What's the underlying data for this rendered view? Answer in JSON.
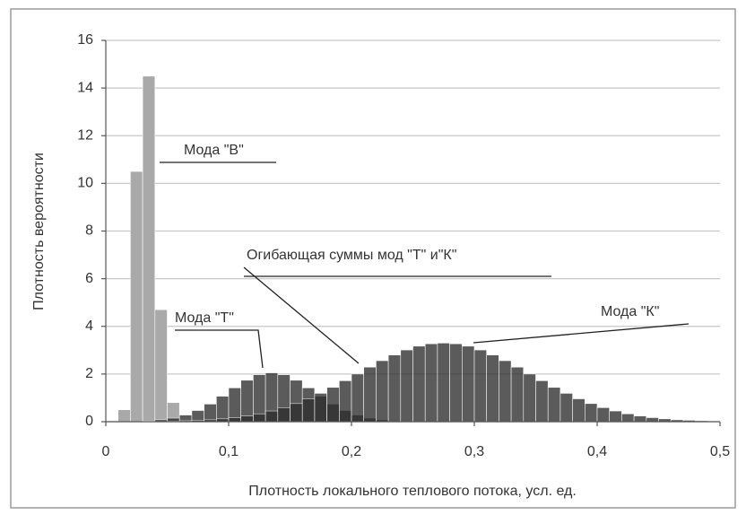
{
  "chart_data": {
    "type": "histogram",
    "x_label": "Плотность локального теплового потока, усл. ед.",
    "y_label": "Плотность вероятности",
    "bins": [
      0,
      0.01,
      0.02,
      0.03,
      0.04,
      0.05,
      0.06,
      0.07,
      0.08,
      0.09,
      0.1,
      0.11,
      0.12,
      0.13,
      0.14,
      0.15,
      0.16,
      0.17,
      0.18,
      0.19,
      0.2,
      0.21,
      0.22,
      0.23,
      0.24,
      0.25,
      0.26,
      0.27,
      0.28,
      0.29,
      0.3,
      0.31,
      0.32,
      0.33,
      0.34,
      0.35,
      0.36,
      0.37,
      0.38,
      0.39,
      0.4,
      0.41,
      0.42,
      0.43,
      0.44,
      0.45,
      0.46,
      0.47,
      0.48,
      0.49,
      0.5
    ],
    "series": [
      {
        "color": "#a9a9a9",
        "values": [
          0,
          0.5,
          10.5,
          14.5,
          4.7,
          0.8,
          0,
          0,
          0,
          0,
          0,
          0,
          0,
          0,
          0,
          0,
          0,
          0,
          0,
          0,
          0,
          0,
          0,
          0,
          0,
          0,
          0,
          0,
          0,
          0,
          0,
          0,
          0,
          0,
          0,
          0,
          0,
          0,
          0,
          0,
          0,
          0,
          0,
          0,
          0,
          0,
          0,
          0,
          0,
          0
        ]
      },
      {
        "color": "#2e2e2e",
        "values": [
          0,
          0.01,
          0.01,
          0.03,
          0.08,
          0.15,
          0.28,
          0.47,
          0.74,
          1.07,
          1.42,
          1.74,
          1.97,
          2.05,
          1.97,
          1.74,
          1.42,
          1.07,
          0.74,
          0.47,
          0.28,
          0.15,
          0.08,
          0.03,
          0.01,
          0.01,
          0,
          0,
          0,
          0,
          0,
          0,
          0,
          0,
          0,
          0,
          0,
          0,
          0,
          0,
          0,
          0,
          0,
          0,
          0,
          0,
          0,
          0,
          0,
          0
        ]
      },
      {
        "color": "#2e2e2e",
        "values": [
          0,
          0,
          0.01,
          0.01,
          0.01,
          0.02,
          0.04,
          0.06,
          0.08,
          0.12,
          0.17,
          0.24,
          0.33,
          0.45,
          0.59,
          0.76,
          0.96,
          1.19,
          1.44,
          1.72,
          2.0,
          2.29,
          2.56,
          2.8,
          3.01,
          3.17,
          3.27,
          3.3,
          3.27,
          3.17,
          3.01,
          2.8,
          2.56,
          2.29,
          2.0,
          1.72,
          1.44,
          1.19,
          0.96,
          0.76,
          0.59,
          0.45,
          0.33,
          0.24,
          0.17,
          0.12,
          0.08,
          0.06,
          0.04,
          0.02
        ]
      }
    ],
    "xlim": [
      0,
      0.5
    ],
    "ylim": [
      0,
      16
    ],
    "xticks": [
      0,
      {
        "value": 0.1,
        "label": "0,1"
      },
      {
        "value": 0.2,
        "label": "0,2"
      },
      {
        "value": 0.3,
        "label": "0,3"
      },
      {
        "value": 0.4,
        "label": "0,4"
      },
      {
        "value": 0.5,
        "label": "0,5"
      }
    ],
    "yticks": [
      0,
      2,
      4,
      6,
      8,
      10,
      12,
      14,
      16
    ],
    "grid": true,
    "annotations": [
      "Мода \"В\"",
      "Огибающая суммы мод \"Т\" и\"К\"",
      "Мода \"Т\"",
      "Мода \"К\""
    ]
  }
}
